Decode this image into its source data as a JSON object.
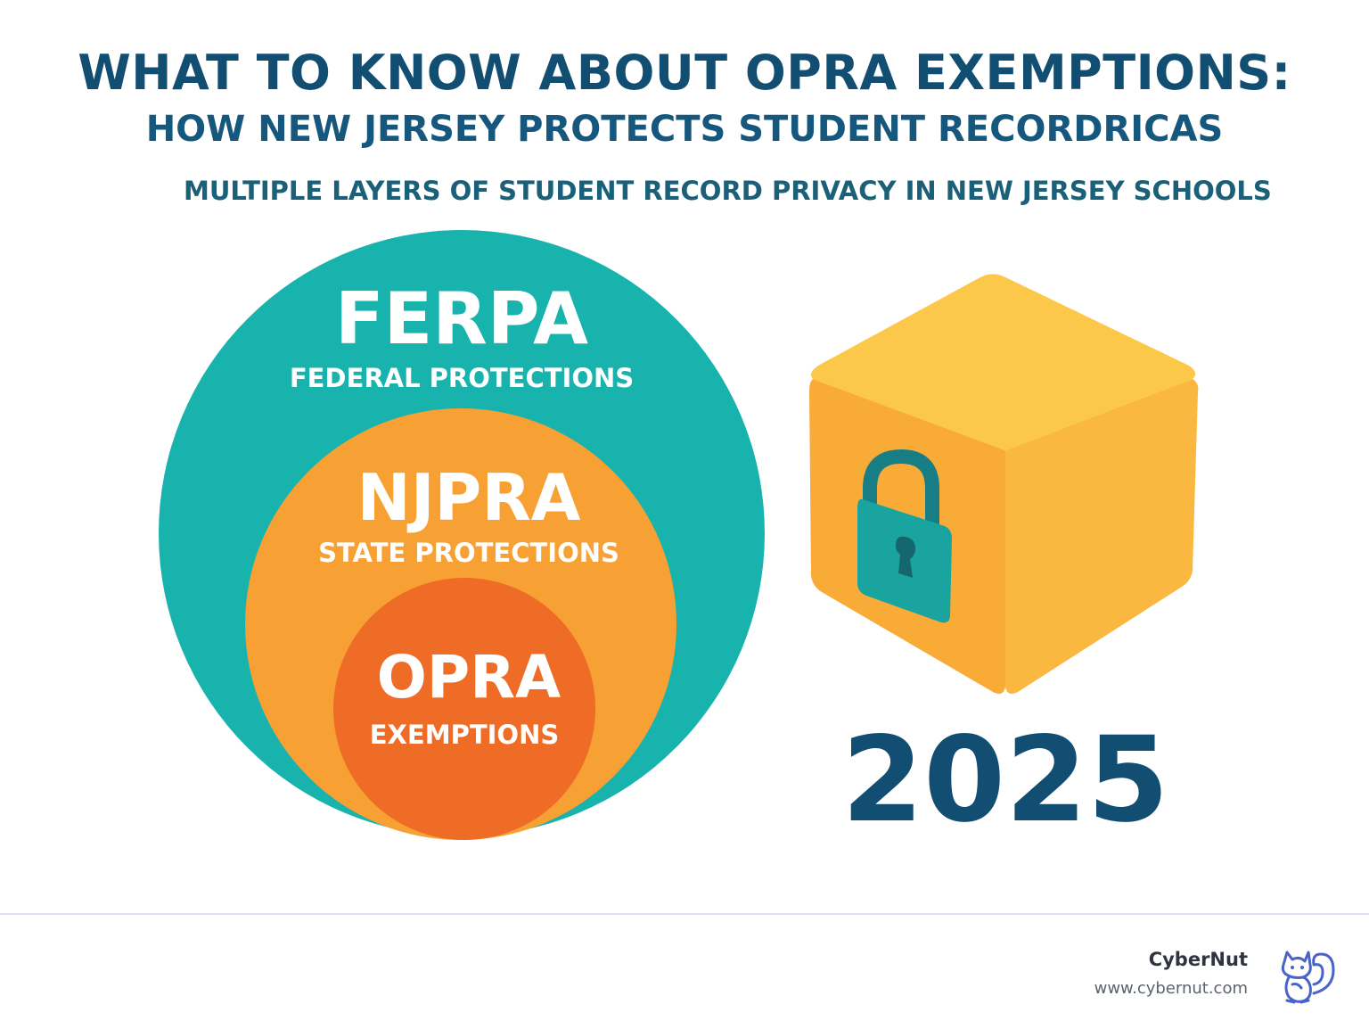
{
  "header": {
    "title_line1": "WHAT TO KNOW ABOUT OPRA EXEMPTIONS:",
    "title_line2": "HOW NEW JERSEY PROTECTS STUDENT RECORDRICAS",
    "subtitle": "MULTIPLE LAYERS OF STUDENT RECORD PRIVACY IN NEW JERSEY SCHOOLS"
  },
  "layers": [
    {
      "name": "FERPA",
      "label": "FEDERAL PROTECTIONS",
      "color": "#19b3ad"
    },
    {
      "name": "NJPRA",
      "label": "STATE PROTECTIONS",
      "color": "#f7a034"
    },
    {
      "name": "OPRA",
      "label": "EXEMPTIONS",
      "color": "#ee6c26"
    }
  ],
  "cube": {
    "year": "2025",
    "top_color": "#fcc84a",
    "front_color": "#f9ab38",
    "side_color": "#fbb840",
    "lock_icon": "padlock-icon",
    "lock_color": "#1aa49f"
  },
  "footer": {
    "brand": "CyberNut",
    "url": "www.cybernut.com",
    "logo_icon": "squirrel-logo-icon",
    "logo_color": "#4a63c8"
  }
}
